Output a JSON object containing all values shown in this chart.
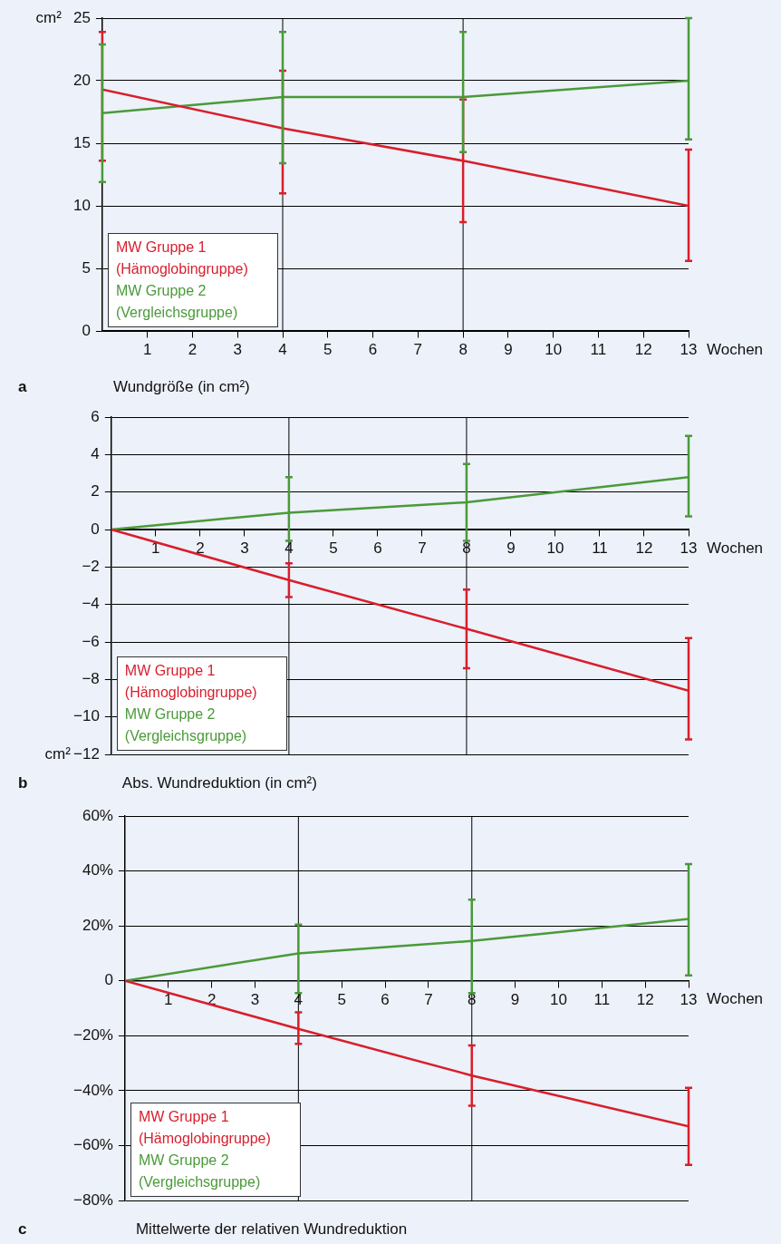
{
  "chart_data": [
    {
      "type": "line",
      "title": "Wundgröße (in cm²)",
      "xlabel": "Wochen",
      "ylabel": "cm²",
      "annotations": [
        "a"
      ],
      "grid": "y",
      "legend": "bottom left",
      "marker": "none",
      "x": [
        0,
        4,
        8,
        13
      ],
      "xlim": [
        0,
        13
      ],
      "xticks": [
        1,
        2,
        3,
        4,
        5,
        6,
        7,
        8,
        9,
        10,
        11,
        12,
        13
      ],
      "ylim": [
        0,
        25
      ],
      "yticks": [
        0,
        5,
        10,
        15,
        20,
        25
      ],
      "ref_lines": [
        {
          "axis": "x",
          "value": 4,
          "color": "#000000"
        },
        {
          "axis": "x",
          "value": 8,
          "color": "#000000"
        }
      ],
      "series": [
        {
          "name": "MW Gruppe 1 (Hämoglobingruppe)",
          "color": "#d81e2c",
          "values": [
            19.3,
            16.2,
            13.6,
            10.0
          ],
          "errors": [
            [
              13.6,
              23.9
            ],
            [
              11.0,
              20.8
            ],
            [
              8.7,
              18.5
            ],
            [
              5.6,
              14.5
            ]
          ]
        },
        {
          "name": "MW Gruppe 2 (Vergleichsgruppe)",
          "color": "#4a9a3a",
          "values": [
            17.4,
            18.7,
            18.7,
            20.0
          ],
          "errors": [
            [
              11.9,
              22.9
            ],
            [
              13.4,
              23.9
            ],
            [
              14.3,
              23.9
            ],
            [
              15.3,
              25.0
            ]
          ]
        }
      ]
    },
    {
      "type": "line",
      "title": "Abs. Wundreduktion (in cm²)",
      "xlabel": "Wochen",
      "ylabel": "cm²",
      "annotations": [
        "b"
      ],
      "grid": "y",
      "legend": "bottom left",
      "marker": "none",
      "x": [
        0,
        4,
        8,
        13
      ],
      "xlim": [
        0,
        13
      ],
      "xticks": [
        1,
        2,
        3,
        4,
        5,
        6,
        7,
        8,
        9,
        10,
        11,
        12,
        13
      ],
      "ylim": [
        -12,
        6
      ],
      "yticks": [
        {
          "value": -12,
          "label": "−12"
        },
        {
          "value": -10,
          "label": "−10"
        },
        {
          "value": -8,
          "label": "−8"
        },
        {
          "value": -6,
          "label": "−6"
        },
        {
          "value": -4,
          "label": "−4"
        },
        {
          "value": -2,
          "label": "−2"
        },
        0,
        2,
        4,
        6
      ],
      "ref_lines": [
        {
          "axis": "x",
          "value": 4,
          "color": "#000000"
        },
        {
          "axis": "x",
          "value": 8,
          "color": "#000000"
        }
      ],
      "series": [
        {
          "name": "MW Gruppe 1 (Hämoglobingruppe)",
          "color": "#d81e2c",
          "values": [
            0,
            -2.7,
            -5.3,
            -8.6
          ],
          "errors": [
            null,
            [
              -3.6,
              -1.8
            ],
            [
              -7.4,
              -3.2
            ],
            [
              -11.2,
              -5.8
            ]
          ]
        },
        {
          "name": "MW Gruppe 2 (Vergleichsgruppe)",
          "color": "#4a9a3a",
          "values": [
            0,
            0.9,
            1.45,
            2.8
          ],
          "errors": [
            null,
            [
              -0.6,
              2.8
            ],
            [
              -0.6,
              3.5
            ],
            [
              0.7,
              5.0
            ]
          ]
        }
      ]
    },
    {
      "type": "line",
      "title": "Mittelwerte der relativen Wundreduktion",
      "xlabel": "Wochen",
      "annotations": [
        "c"
      ],
      "grid": "y",
      "legend": "bottom left",
      "marker": "none",
      "x": [
        0,
        4,
        8,
        13
      ],
      "xlim": [
        0,
        13
      ],
      "xticks": [
        1,
        2,
        3,
        4,
        5,
        6,
        7,
        8,
        9,
        10,
        11,
        12,
        13
      ],
      "ylim": [
        -80,
        60
      ],
      "yticks": [
        {
          "value": -80,
          "label": "−80%"
        },
        {
          "value": -60,
          "label": "−60%"
        },
        {
          "value": -40,
          "label": "−40%"
        },
        {
          "value": -20,
          "label": "−20%"
        },
        0,
        {
          "value": 20,
          "label": "20%"
        },
        {
          "value": 40,
          "label": "40%"
        },
        {
          "value": 60,
          "label": "60%"
        }
      ],
      "ref_lines": [
        {
          "axis": "x",
          "value": 4,
          "color": "#000000"
        },
        {
          "axis": "x",
          "value": 8,
          "color": "#000000"
        }
      ],
      "series": [
        {
          "name": "MW Gruppe 1 (Hämoglobingruppe)",
          "color": "#d81e2c",
          "values": [
            0,
            -17.5,
            -34.5,
            -53
          ],
          "errors": [
            null,
            [
              -23,
              -11.5
            ],
            [
              -45.5,
              -23.5
            ],
            [
              -67,
              -39
            ]
          ]
        },
        {
          "name": "MW Gruppe 2 (Vergleichsgruppe)",
          "color": "#4a9a3a",
          "values": [
            0,
            10,
            14.5,
            22.5
          ],
          "errors": [
            null,
            [
              -4.5,
              20.5
            ],
            [
              -4.5,
              29.5
            ],
            [
              2,
              42.5
            ]
          ]
        }
      ]
    }
  ]
}
